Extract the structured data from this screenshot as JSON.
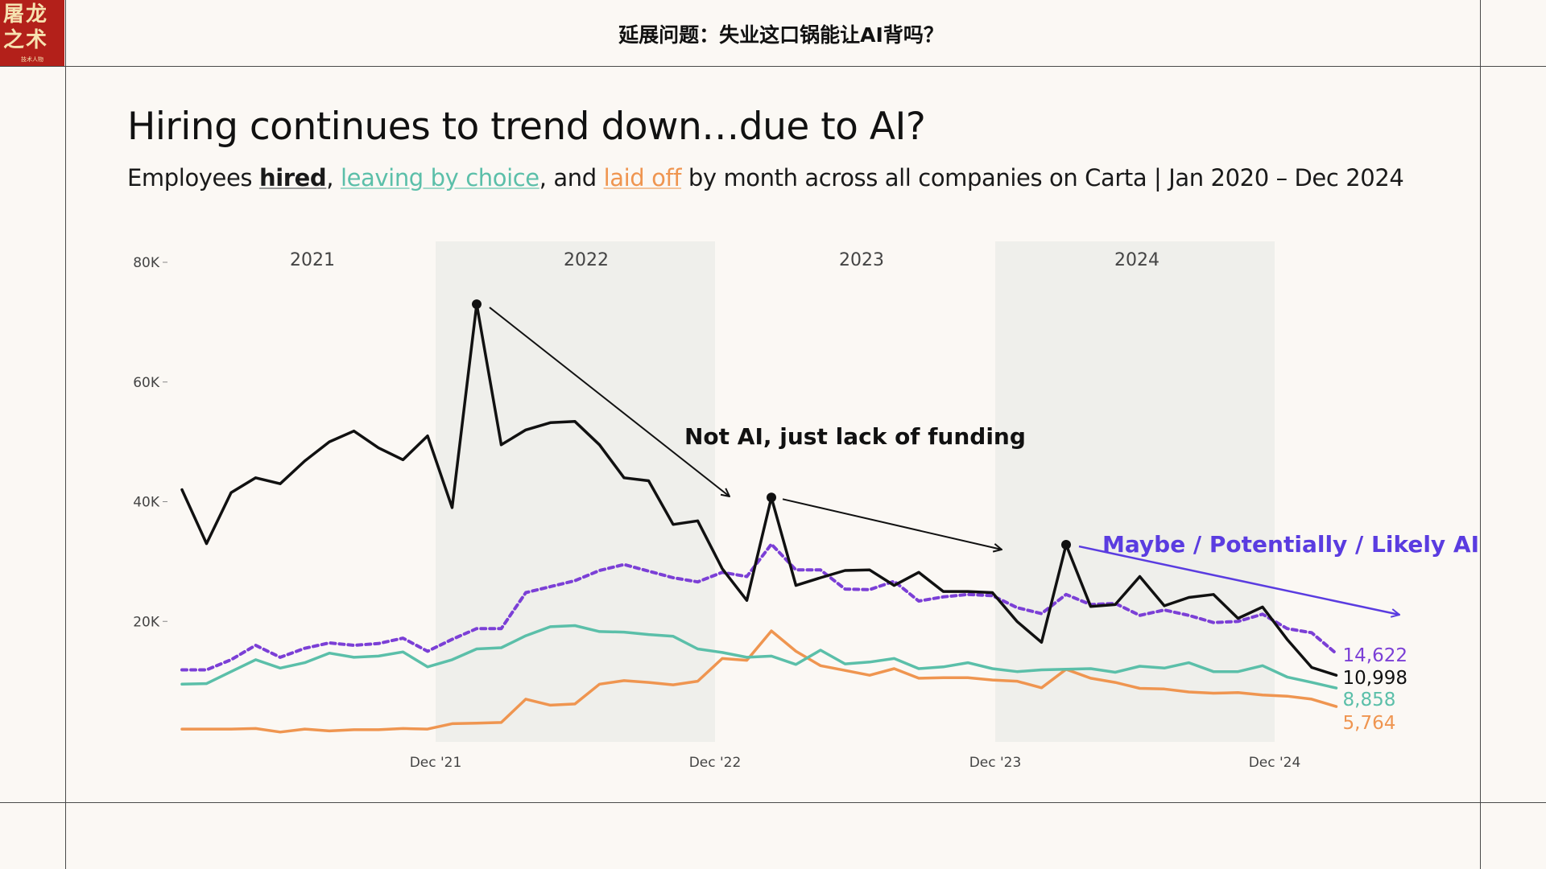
{
  "header": {
    "logo_text": "屠龙之术",
    "logo_subtext": "技术人物",
    "title": "延展问题：失业这口锅能让AI背吗？"
  },
  "colors": {
    "hired": "#111111",
    "leaving": "#5bbfa9",
    "laid_off": "#ef9550",
    "dotted": "#7b3fd6",
    "ai_annotation": "#5a3ce0",
    "band": "#efefeb",
    "background": "#fbf8f4"
  },
  "chart_data": {
    "type": "line",
    "title": "Hiring continues to trend down…due to AI?",
    "subtitle": {
      "prefix": "Employees ",
      "hired": "hired",
      "sep1": ", ",
      "leaving": "leaving by choice",
      "sep2": ", and ",
      "laid_off": "laid off",
      "suffix": " by month across all companies on Carta | Jan 2020 – Dec 2024"
    },
    "ylim": [
      0,
      80000
    ],
    "y_ticks": [
      {
        "value": 20000,
        "label": "20K"
      },
      {
        "value": 40000,
        "label": "40K"
      },
      {
        "value": 60000,
        "label": "60K"
      },
      {
        "value": 80000,
        "label": "80K"
      }
    ],
    "x_ticks": [
      "Dec '21",
      "Dec '22",
      "Dec '23",
      "Dec '24"
    ],
    "year_labels": [
      "2021",
      "2022",
      "2023",
      "2024"
    ],
    "shaded_years": [
      "2022",
      "2024"
    ],
    "grid": false,
    "series": [
      {
        "key": "hired",
        "end_label": "10,998",
        "values": [
          42000,
          33000,
          41500,
          44000,
          43000,
          46800,
          50000,
          51800,
          49000,
          47000,
          51000,
          39000,
          73000,
          49500,
          52000,
          53200,
          53400,
          49500,
          44000,
          43500,
          36200,
          36800,
          28800,
          23500,
          40700,
          26000,
          27300,
          28500,
          28600,
          26000,
          28200,
          25000,
          25000,
          24800,
          20000,
          16500,
          32800,
          22500,
          22800,
          27500,
          22600,
          24000,
          24500,
          20500,
          22400,
          17000,
          12300,
          11000
        ]
      },
      {
        "key": "dotted",
        "end_label": "14,622",
        "values": [
          11900,
          11900,
          13600,
          16000,
          14000,
          15500,
          16400,
          16000,
          16300,
          17200,
          15000,
          17000,
          18800,
          18800,
          24800,
          25800,
          26800,
          28500,
          29500,
          28400,
          27300,
          26600,
          28200,
          27500,
          32900,
          28600,
          28600,
          25400,
          25300,
          26700,
          23400,
          24100,
          24500,
          24300,
          22300,
          21300,
          24500,
          22800,
          23000,
          21000,
          21900,
          21000,
          19800,
          20000,
          21200,
          18800,
          18100,
          14622
        ]
      },
      {
        "key": "leaving",
        "end_label": "8,858",
        "values": [
          9500,
          9600,
          11600,
          13600,
          12200,
          13100,
          14700,
          14000,
          14200,
          14900,
          12400,
          13600,
          15400,
          15600,
          17600,
          19100,
          19300,
          18300,
          18200,
          17800,
          17500,
          15400,
          14800,
          14000,
          14200,
          12800,
          15200,
          12900,
          13200,
          13800,
          12100,
          12400,
          13100,
          12100,
          11600,
          11900,
          12000,
          12100,
          11500,
          12500,
          12200,
          13100,
          11600,
          11600,
          12600,
          10700,
          9800,
          8858
        ]
      },
      {
        "key": "laid_off",
        "end_label": "5,764",
        "values": [
          2000,
          2000,
          2000,
          2100,
          1500,
          2000,
          1700,
          1900,
          1900,
          2100,
          2000,
          2900,
          3000,
          3100,
          7000,
          6000,
          6200,
          9500,
          10100,
          9800,
          9400,
          10000,
          13800,
          13500,
          18400,
          15000,
          12600,
          11800,
          11000,
          12100,
          10500,
          10600,
          10600,
          10200,
          10000,
          8900,
          12000,
          10500,
          9800,
          8800,
          8700,
          8200,
          8000,
          8100,
          7700,
          7500,
          7000,
          5764
        ]
      }
    ],
    "annotations": [
      {
        "key": "funding",
        "text": "Not AI, just lack of funding"
      },
      {
        "key": "ai",
        "text": "Maybe / Potentially / Likely AI"
      }
    ]
  }
}
